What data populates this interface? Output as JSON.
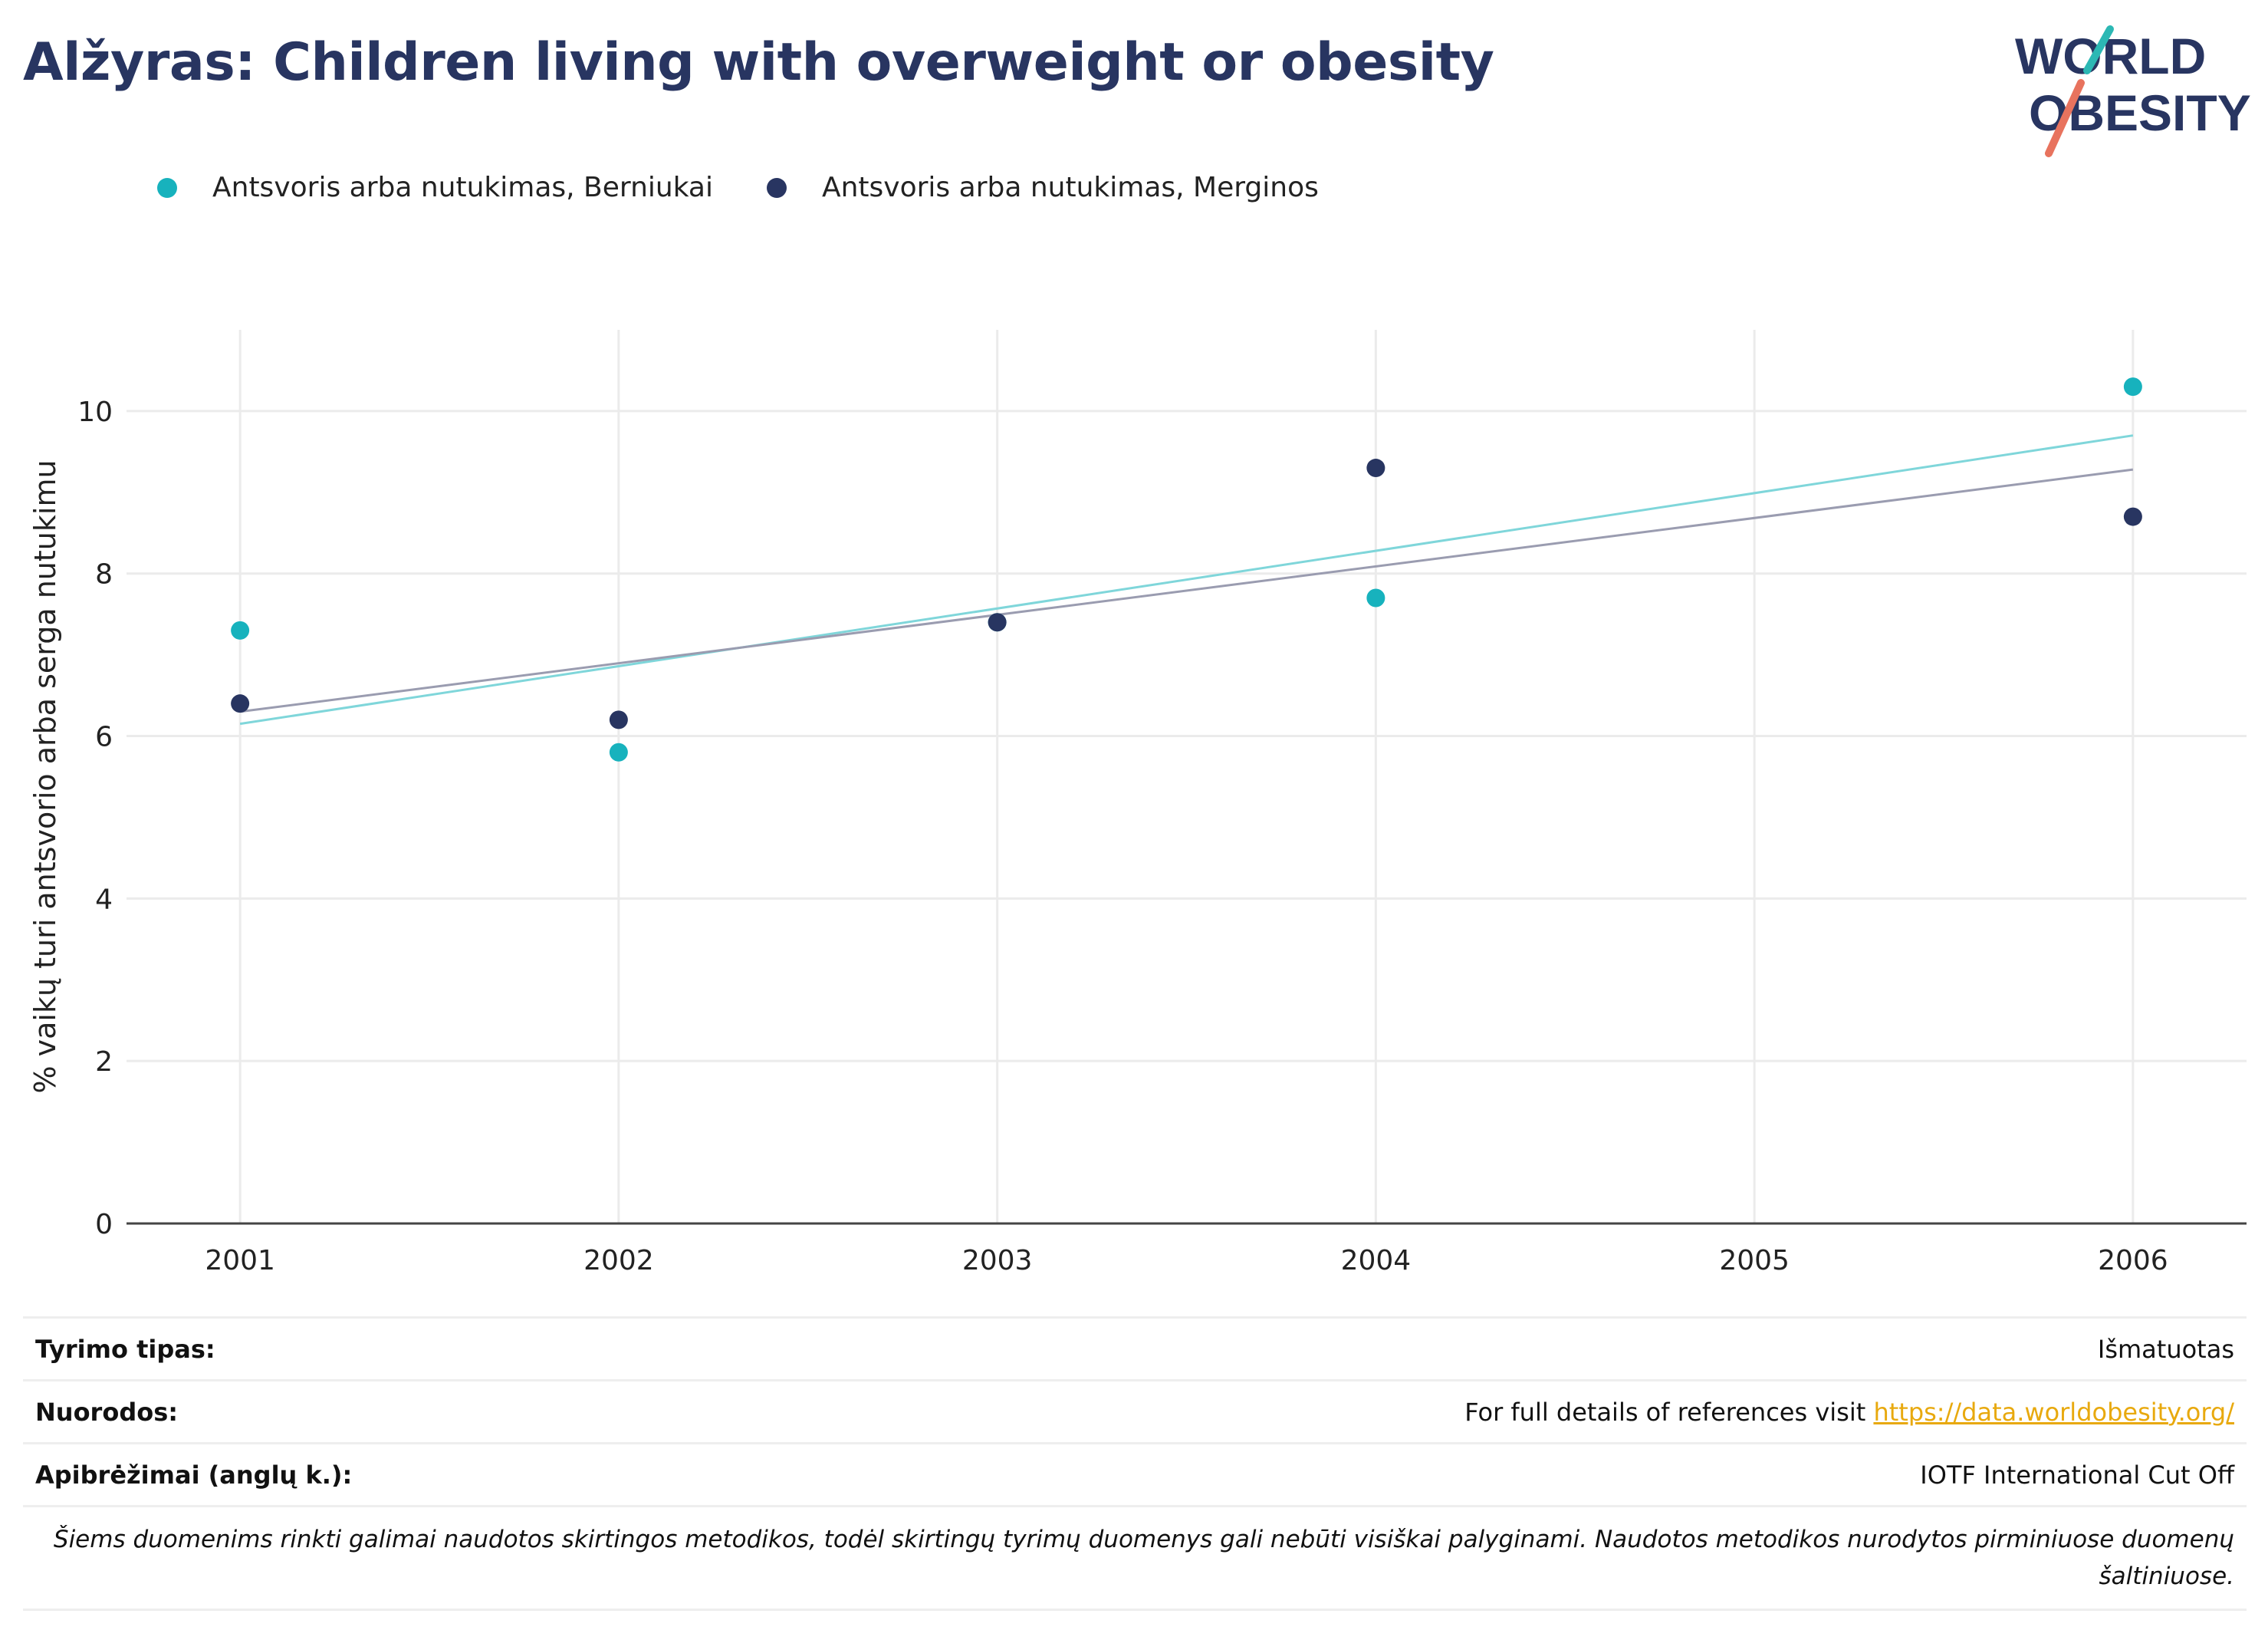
{
  "title": "Alžyras: Children living with overweight or obesity",
  "logo": {
    "line1": "WORLD",
    "line2": "OBESITY"
  },
  "colors": {
    "boys": "#17b2bd",
    "girls": "#283561",
    "title": "#283561",
    "link": "#e8a90e",
    "logo_slash_top": "#2cb8b4",
    "logo_slash_bottom": "#e8735e"
  },
  "chart_data": {
    "type": "scatter",
    "ylabel": "% vaikų turi antsvorio arba serga nutukimu",
    "xlabel": "",
    "xlim": [
      2000.7,
      2006.3
    ],
    "ylim": [
      0,
      11
    ],
    "x_ticks": [
      "2001",
      "2002",
      "2003",
      "2004",
      "2005",
      "2006"
    ],
    "y_ticks": [
      "0",
      "2",
      "4",
      "6",
      "8",
      "10"
    ],
    "grid": true,
    "legend_position": "top-left",
    "series": [
      {
        "name": "Antsvoris arba nutukimas, Berniukai",
        "color": "#17b2bd",
        "points": [
          [
            2001,
            7.3
          ],
          [
            2002,
            5.8
          ],
          [
            2003,
            7.4
          ],
          [
            2004,
            7.7
          ],
          [
            2006,
            10.3
          ]
        ],
        "trend": [
          [
            2001,
            6.15
          ],
          [
            2006,
            9.7
          ]
        ],
        "trend_color": "#7fd6da"
      },
      {
        "name": "Antsvoris arba nutukimas, Merginos",
        "color": "#283561",
        "points": [
          [
            2001,
            6.4
          ],
          [
            2002,
            6.2
          ],
          [
            2003,
            7.4
          ],
          [
            2004,
            9.3
          ],
          [
            2006,
            8.7
          ]
        ],
        "trend": [
          [
            2001,
            6.3
          ],
          [
            2006,
            9.28
          ]
        ],
        "trend_color": "#9a9cb0"
      }
    ]
  },
  "info": {
    "study_type_label": "Tyrimo tipas:",
    "study_type_value": "Išmatuotas",
    "references_label": "Nuorodos:",
    "references_text": "For full details of references visit ",
    "references_link": "https://data.worldobesity.org/",
    "definitions_label": "Apibrėžimai (anglų k.):",
    "definitions_value": "IOTF International Cut Off",
    "note": "Šiems duomenims rinkti galimai naudotos skirtingos metodikos, todėl skirtingų tyrimų duomenys gali nebūti visiškai palyginami. Naudotos metodikos nurodytos pirminiuose duomenų šaltiniuose."
  }
}
